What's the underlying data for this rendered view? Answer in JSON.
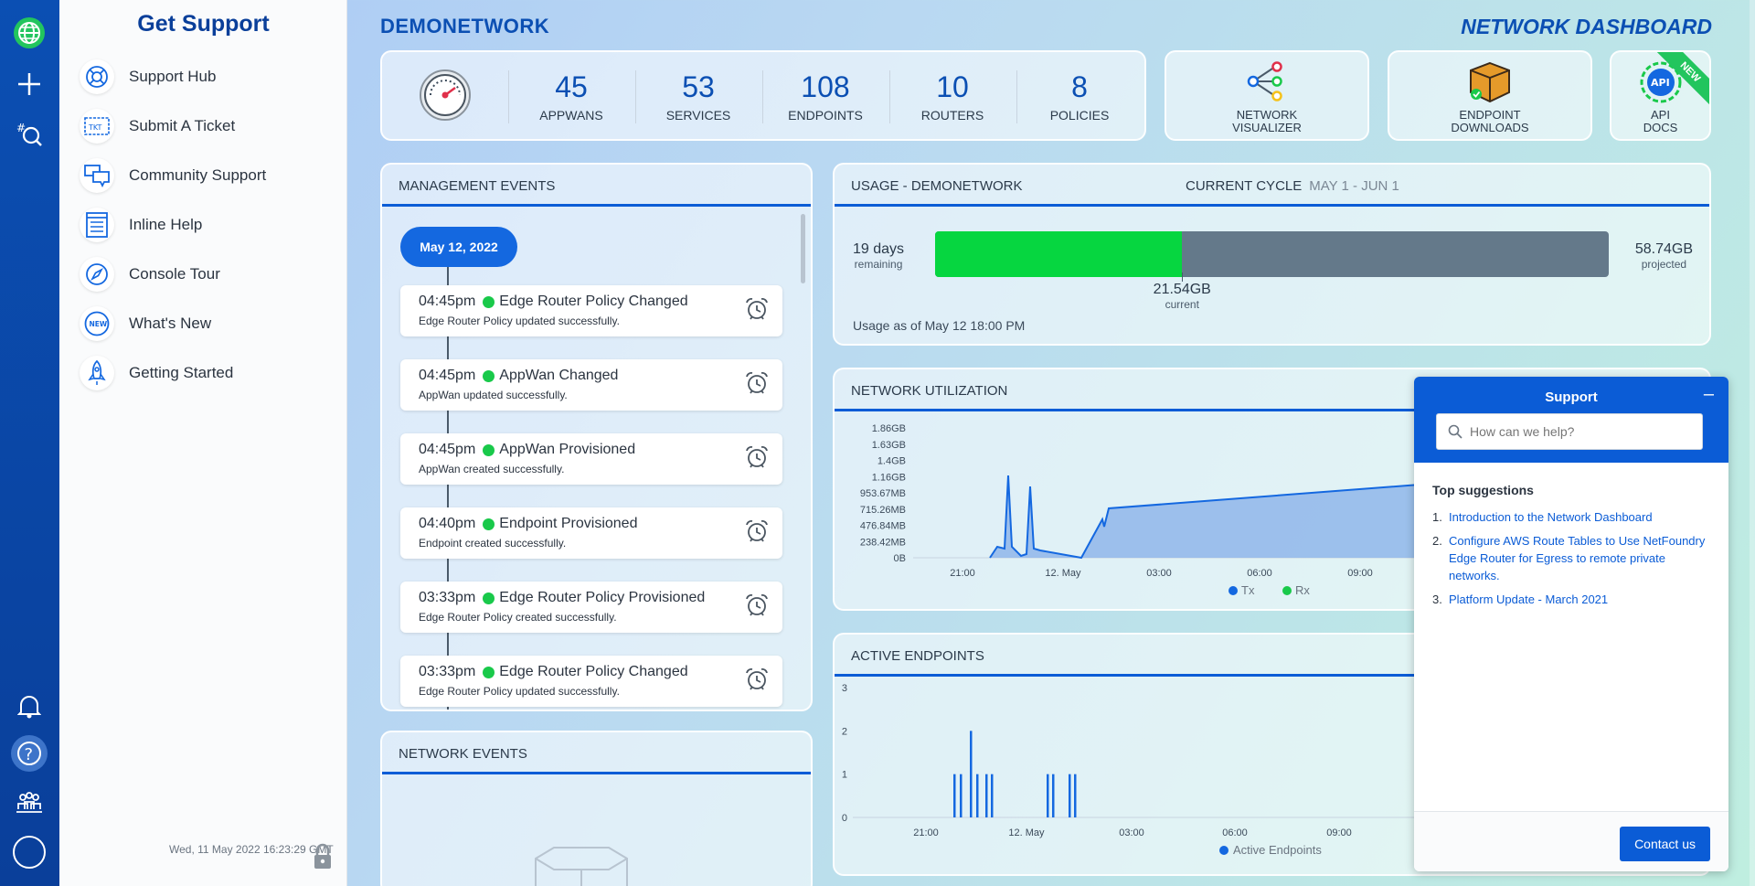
{
  "rail": {
    "icons": [
      "globe-icon",
      "plus-icon",
      "search-network-icon",
      "bell-icon",
      "help-icon",
      "team-icon",
      "profile-circle-icon"
    ],
    "help_glyph": "?"
  },
  "support_side": {
    "title": "Get Support",
    "items": [
      {
        "label": "Support Hub",
        "icon": "lifebuoy-icon"
      },
      {
        "label": "Submit A Ticket",
        "icon": "ticket-icon"
      },
      {
        "label": "Community Support",
        "icon": "chat-bubbles-icon"
      },
      {
        "label": "Inline Help",
        "icon": "list-doc-icon"
      },
      {
        "label": "Console Tour",
        "icon": "compass-icon"
      },
      {
        "label": "What's New",
        "icon": "new-badge-icon"
      },
      {
        "label": "Getting Started",
        "icon": "rocket-icon"
      }
    ],
    "clock": "Wed, 11 May 2022 16:23:29 GMT",
    "ticket_icon_text": "TKT",
    "new_icon_text": "NEW"
  },
  "header": {
    "network": "DEMONETWORK",
    "title": "NETWORK DASHBOARD"
  },
  "stats": [
    {
      "value": "45",
      "label": "APPWANS"
    },
    {
      "value": "53",
      "label": "SERVICES"
    },
    {
      "value": "108",
      "label": "ENDPOINTS"
    },
    {
      "value": "10",
      "label": "ROUTERS"
    },
    {
      "value": "8",
      "label": "POLICIES"
    }
  ],
  "tiles": [
    {
      "line1": "NETWORK",
      "line2": "VISUALIZER"
    },
    {
      "line1": "ENDPOINT",
      "line2": "DOWNLOADS"
    },
    {
      "line1": "API",
      "line2": "DOCS",
      "badge": "NEW",
      "icon_text": "API"
    }
  ],
  "management_events": {
    "title": "MANAGEMENT EVENTS",
    "date": "May 12, 2022",
    "events": [
      {
        "time": "04:45pm",
        "title": "Edge Router Policy Changed",
        "desc": "Edge Router Policy updated successfully."
      },
      {
        "time": "04:45pm",
        "title": "AppWan Changed",
        "desc": "AppWan updated successfully."
      },
      {
        "time": "04:45pm",
        "title": "AppWan Provisioned",
        "desc": "AppWan created successfully."
      },
      {
        "time": "04:40pm",
        "title": "Endpoint Provisioned",
        "desc": "Endpoint created successfully."
      },
      {
        "time": "03:33pm",
        "title": "Edge Router Policy Provisioned",
        "desc": "Edge Router Policy created successfully."
      },
      {
        "time": "03:33pm",
        "title": "Edge Router Policy Changed",
        "desc": "Edge Router Policy updated successfully."
      }
    ]
  },
  "network_events": {
    "title": "NETWORK EVENTS"
  },
  "usage": {
    "title": "USAGE - DEMONETWORK",
    "cycle_label": "CURRENT CYCLE",
    "cycle_range": "MAY 1 - JUN 1",
    "remaining_value": "19 days",
    "remaining_label": "remaining",
    "current_value": "21.54GB",
    "current_label": "current",
    "projected_value": "58.74GB",
    "projected_label": "projected",
    "current_gb": 21.54,
    "projected_gb": 58.74,
    "as_of": "Usage as of May 12 18:00 PM"
  },
  "network_utilization": {
    "title": "NETWORK UTILIZATION",
    "chart_data": {
      "type": "area",
      "y_ticks": [
        "1.86GB",
        "1.63GB",
        "1.4GB",
        "1.16GB",
        "953.67MB",
        "715.26MB",
        "476.84MB",
        "238.42MB",
        "0B"
      ],
      "x_ticks": [
        "21:00",
        "12. May",
        "03:00",
        "06:00",
        "09:00"
      ],
      "series": [
        {
          "name": "Tx",
          "color": "#1468e0"
        },
        {
          "name": "Rx",
          "color": "#19c94a"
        }
      ]
    }
  },
  "active_endpoints": {
    "title": "ACTIVE ENDPOINTS",
    "chart_data": {
      "type": "bar",
      "y_ticks": [
        "3",
        "2",
        "1",
        "0"
      ],
      "x_ticks": [
        "21:00",
        "12. May",
        "03:00",
        "06:00",
        "09:00"
      ],
      "series": [
        {
          "name": "Active Endpoints",
          "color": "#1468e0"
        }
      ],
      "bars": [
        1,
        1,
        2,
        1,
        1,
        1,
        1,
        1,
        1,
        1
      ]
    }
  },
  "support_widget": {
    "title": "Support",
    "minimize": "–",
    "search_placeholder": "How can we help?",
    "suggestions_title": "Top suggestions",
    "suggestions": [
      {
        "n": "1.",
        "text": "Introduction to the Network Dashboard"
      },
      {
        "n": "2.",
        "text": "Configure AWS Route Tables to Use NetFoundry Edge Router for Egress to remote private networks."
      },
      {
        "n": "3.",
        "text": "Platform Update - March 2021"
      }
    ],
    "contact": "Contact us"
  }
}
